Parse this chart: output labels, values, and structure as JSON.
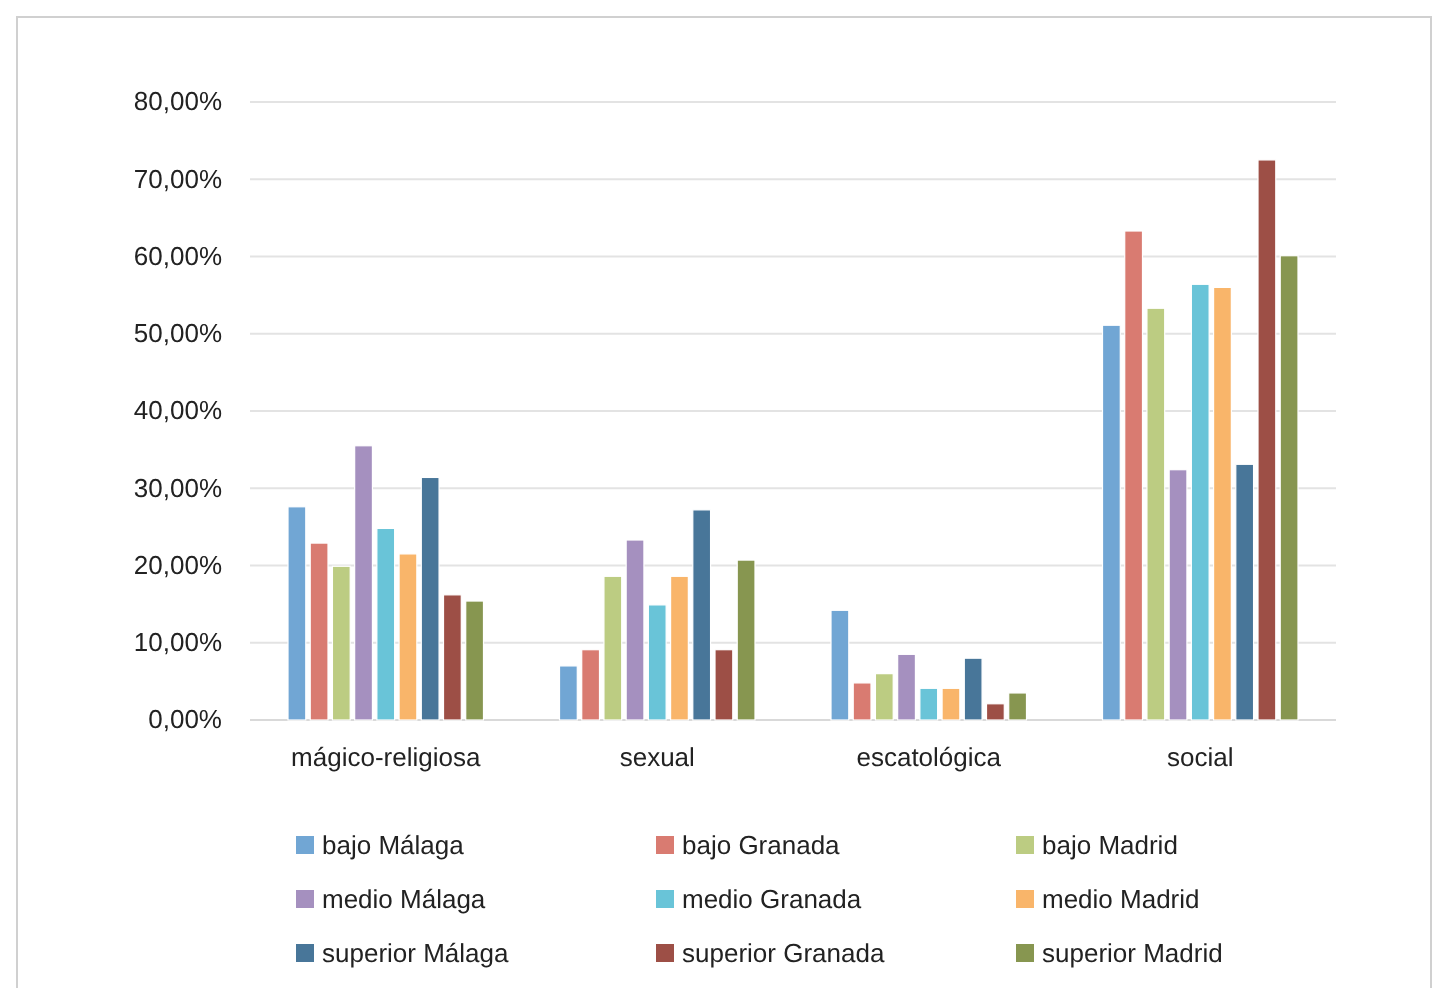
{
  "chart_data": {
    "type": "bar",
    "categories": [
      "mágico-religiosa",
      "sexual",
      "escatológica",
      "social"
    ],
    "series": [
      {
        "name": "bajo Málaga",
        "color": "#71a6d4",
        "values": [
          27.6,
          7.0,
          14.2,
          51.1
        ]
      },
      {
        "name": "bajo Granada",
        "color": "#d97b71",
        "values": [
          22.9,
          9.1,
          4.8,
          63.3
        ]
      },
      {
        "name": "bajo Madrid",
        "color": "#bccc82",
        "values": [
          19.9,
          18.6,
          6.0,
          53.3
        ]
      },
      {
        "name": "medio Málaga",
        "color": "#a590bf",
        "values": [
          35.5,
          23.3,
          8.5,
          32.4
        ]
      },
      {
        "name": "medio Granada",
        "color": "#69c4d8",
        "values": [
          24.8,
          14.9,
          4.1,
          56.4
        ]
      },
      {
        "name": "medio Madrid",
        "color": "#f9b56a",
        "values": [
          21.5,
          18.6,
          4.1,
          56.0
        ]
      },
      {
        "name": "superior Málaga",
        "color": "#487699",
        "values": [
          31.4,
          27.2,
          8.0,
          33.1
        ]
      },
      {
        "name": "superior Granada",
        "color": "#9d4f46",
        "values": [
          16.2,
          9.1,
          2.1,
          72.5
        ]
      },
      {
        "name": "superior Madrid",
        "color": "#879650",
        "values": [
          15.4,
          20.7,
          3.5,
          60.1
        ]
      }
    ],
    "ylim": [
      0,
      80
    ],
    "yticks": [
      {
        "value": 0,
        "label": "0,00%"
      },
      {
        "value": 10,
        "label": "10,00%"
      },
      {
        "value": 20,
        "label": "20,00%"
      },
      {
        "value": 30,
        "label": "30,00%"
      },
      {
        "value": 40,
        "label": "40,00%"
      },
      {
        "value": 50,
        "label": "50,00%"
      },
      {
        "value": 60,
        "label": "60,00%"
      },
      {
        "value": 70,
        "label": "70,00%"
      },
      {
        "value": 80,
        "label": "80,00%"
      }
    ],
    "grid": "y",
    "legend": "bottom"
  }
}
